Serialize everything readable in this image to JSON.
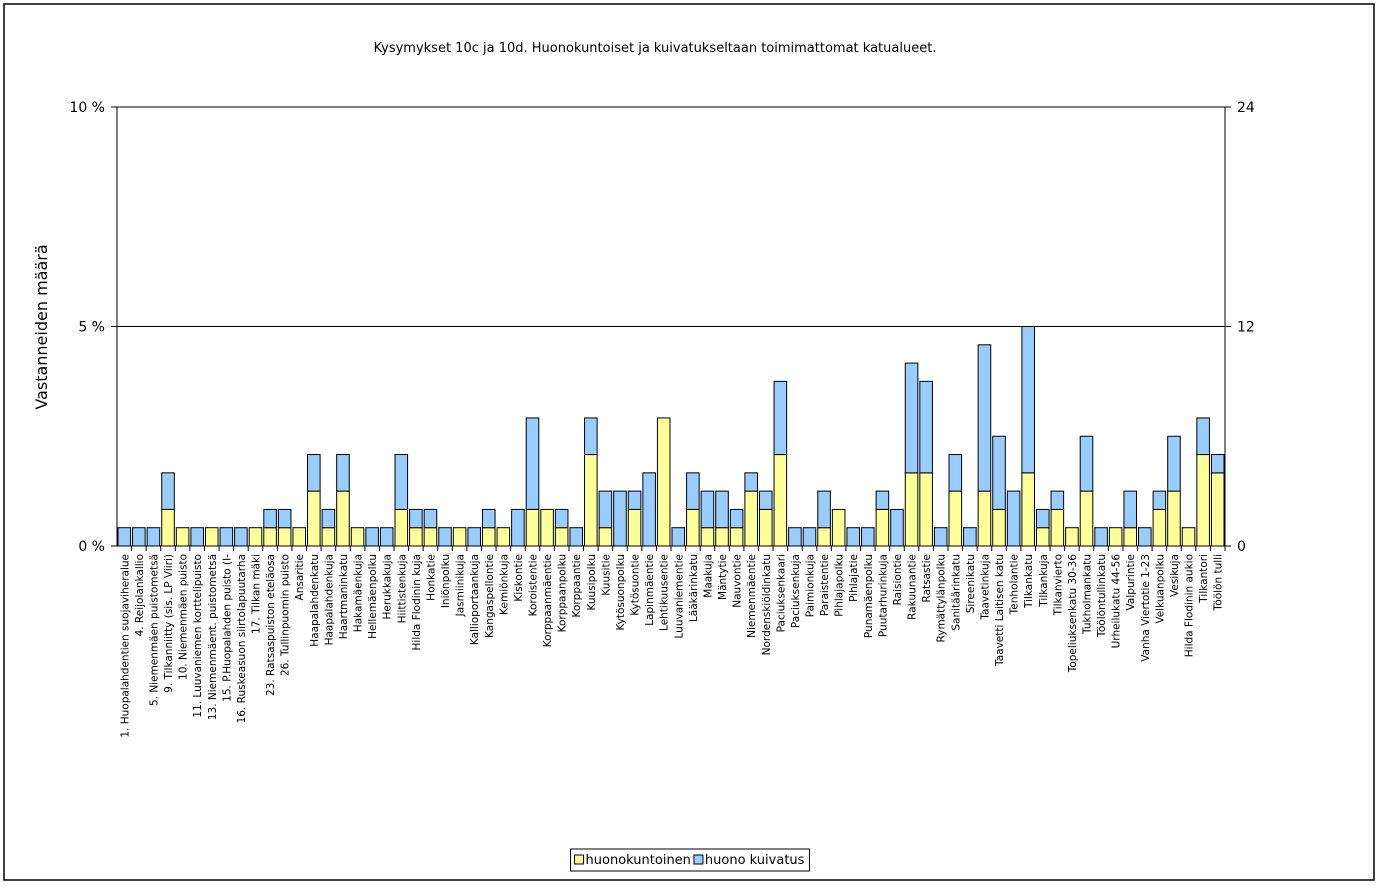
{
  "chart_data": {
    "type": "bar",
    "stacked": true,
    "title": "Kysymykset 10c ja 10d. Huonokuntoiset ja kuivatukseltaan toimimattomat katualueet.",
    "y_label": "Vastanneiden määrä",
    "categories": [
      "1. Huopalahdentien suojaviheralue",
      "4. Reijolankallio",
      "5. Niemenmäen puistometsä",
      "9. Tilkanniitty (sis. LP Viiri)",
      "10. Niemenmäen puisto",
      "11. Luuvaniemen korttelipuisto",
      "13. Niemenmäent. puistometsä",
      "15. P.Huopalahden puisto (I-",
      "16. Ruskeasuon siirtolapuutarha",
      "17. Tilkan mäki",
      "23. Ratsaspuiston eteläosa",
      "26. Tullinpuomin puisto",
      "Ansaritie",
      "Haapalahdenkatu",
      "Haapalahdenkuja",
      "Haartmaninkatu",
      "Hakamäenkuja",
      "Hellemäenpolku",
      "Herukkakuja",
      "Hiittistenkuja",
      "Hilda Flodinin kuja",
      "Honkatie",
      "Iniönpolku",
      "Jasmiinikuja",
      "Kallioportaankuja",
      "Kangaspellontie",
      "Kemiönkuja",
      "Kiskontie",
      "Koroistentie",
      "Korppaanmäentie",
      "Korppaanpolku",
      "Korppaantie",
      "Kuusipolku",
      "Kuusitie",
      "Kytösuonpolku",
      "Kytösuontie",
      "Lapinmäentie",
      "Lehtikuusentie",
      "Luuvaniementie",
      "Lääkärinkatu",
      "Maakuja",
      "Mäntytie",
      "Nauvontie",
      "Niemenmäentie",
      "Nordenskiöldinkatu",
      "Paciuksenkaari",
      "Paciuksenkuja",
      "Paimionkuja",
      "Paraistentie",
      "Pihlajapolku",
      "Pihlajatie",
      "Punamäenpolku",
      "Puutarhurinkuja",
      "Raisiontie",
      "Rakuunantie",
      "Ratsastie",
      "Rymättylänpolku",
      "Sanitäärinkatu",
      "Sireenikatu",
      "Taavetinkuja",
      "Taavetti Laitisen katu",
      "Tenholantie",
      "Tilkankatu",
      "Tilkankuja",
      "Tilkanvierto",
      "Topeliuksenkatu 30-36",
      "Tukholmankatu",
      "Töölöntullinkatu",
      "Urheilukatu 44-56",
      "Valpurintie",
      "Vanha Viertotie 1-23",
      "Velkuanpolku",
      "Vesikuja",
      "Hilda Flodinin aukio",
      "Tilkantori",
      "Töölön tulli"
    ],
    "series": [
      {
        "name": "huonokuntoinen",
        "color": "#ffff99",
        "axis": "y2",
        "values": [
          0,
          0,
          0,
          2,
          1,
          0,
          1,
          0,
          0,
          1,
          1,
          1,
          1,
          3,
          1,
          3,
          1,
          0,
          0,
          2,
          1,
          1,
          0,
          1,
          0,
          1,
          1,
          0,
          2,
          2,
          1,
          0,
          5,
          1,
          0,
          2,
          0,
          7,
          0,
          2,
          1,
          1,
          1,
          3,
          2,
          5,
          0,
          0,
          1,
          2,
          0,
          0,
          2,
          0,
          4,
          4,
          0,
          3,
          0,
          3,
          2,
          0,
          4,
          1,
          2,
          1,
          3,
          0,
          1,
          1,
          0,
          2,
          3,
          1,
          5,
          4
        ]
      },
      {
        "name": "huono kuivatus",
        "color": "#99ccff",
        "axis": "y2",
        "values": [
          1,
          1,
          1,
          2,
          0,
          1,
          0,
          1,
          1,
          0,
          1,
          1,
          0,
          2,
          1,
          2,
          0,
          1,
          1,
          3,
          1,
          1,
          1,
          0,
          1,
          1,
          0,
          2,
          5,
          0,
          1,
          1,
          2,
          2,
          3,
          1,
          4,
          0,
          1,
          2,
          2,
          2,
          1,
          1,
          1,
          4,
          1,
          1,
          2,
          0,
          1,
          1,
          1,
          2,
          6,
          5,
          1,
          2,
          1,
          8,
          4,
          3,
          8,
          1,
          1,
          0,
          3,
          1,
          0,
          2,
          1,
          1,
          3,
          0,
          2,
          1
        ]
      }
    ],
    "ylim": [
      0,
      10
    ],
    "yticks": [
      {
        "value": 0,
        "label": "0 %"
      },
      {
        "value": 5,
        "label": "5 %"
      },
      {
        "value": 10,
        "label": "10 %"
      }
    ],
    "y2lim": [
      0,
      24
    ],
    "y2ticks": [
      0,
      12,
      24
    ],
    "grid": true,
    "legend": "bottom"
  }
}
